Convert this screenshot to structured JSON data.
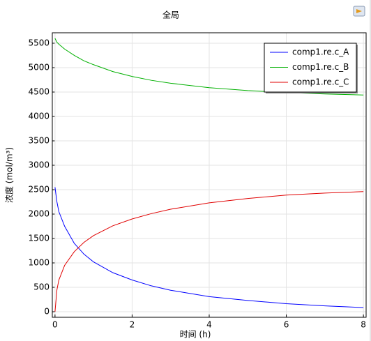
{
  "chart_data": {
    "type": "line",
    "title": "全局",
    "x_label": "时间 (h)",
    "y_label": "浓度 (mol/m³)",
    "x": [
      0,
      0.05,
      0.1,
      0.25,
      0.5,
      0.75,
      1,
      1.5,
      2,
      2.5,
      3,
      4,
      5,
      6,
      7,
      8
    ],
    "series": [
      {
        "name": "comp1.re.c_A",
        "color": "#0000ff",
        "values": [
          2550,
          2250,
          2050,
          1750,
          1400,
          1180,
          1020,
          800,
          650,
          530,
          440,
          310,
          230,
          165,
          120,
          85
        ]
      },
      {
        "name": "comp1.re.c_B",
        "color": "#00b000",
        "values": [
          5600,
          5520,
          5480,
          5380,
          5250,
          5140,
          5060,
          4920,
          4820,
          4740,
          4680,
          4590,
          4530,
          4490,
          4460,
          4440
        ]
      },
      {
        "name": "comp1.re.c_C",
        "color": "#e00000",
        "values": [
          0,
          450,
          650,
          950,
          1230,
          1420,
          1560,
          1760,
          1900,
          2010,
          2100,
          2230,
          2320,
          2390,
          2430,
          2460
        ]
      }
    ],
    "xlim": [
      -0.07,
      8.07
    ],
    "ylim": [
      -114,
      5714
    ],
    "xticks": [
      0,
      2,
      4,
      6,
      8
    ],
    "yticks": [
      0,
      500,
      1000,
      1500,
      2000,
      2500,
      3000,
      3500,
      4000,
      4500,
      5000,
      5500
    ],
    "grid": true,
    "legend": "top-right"
  }
}
